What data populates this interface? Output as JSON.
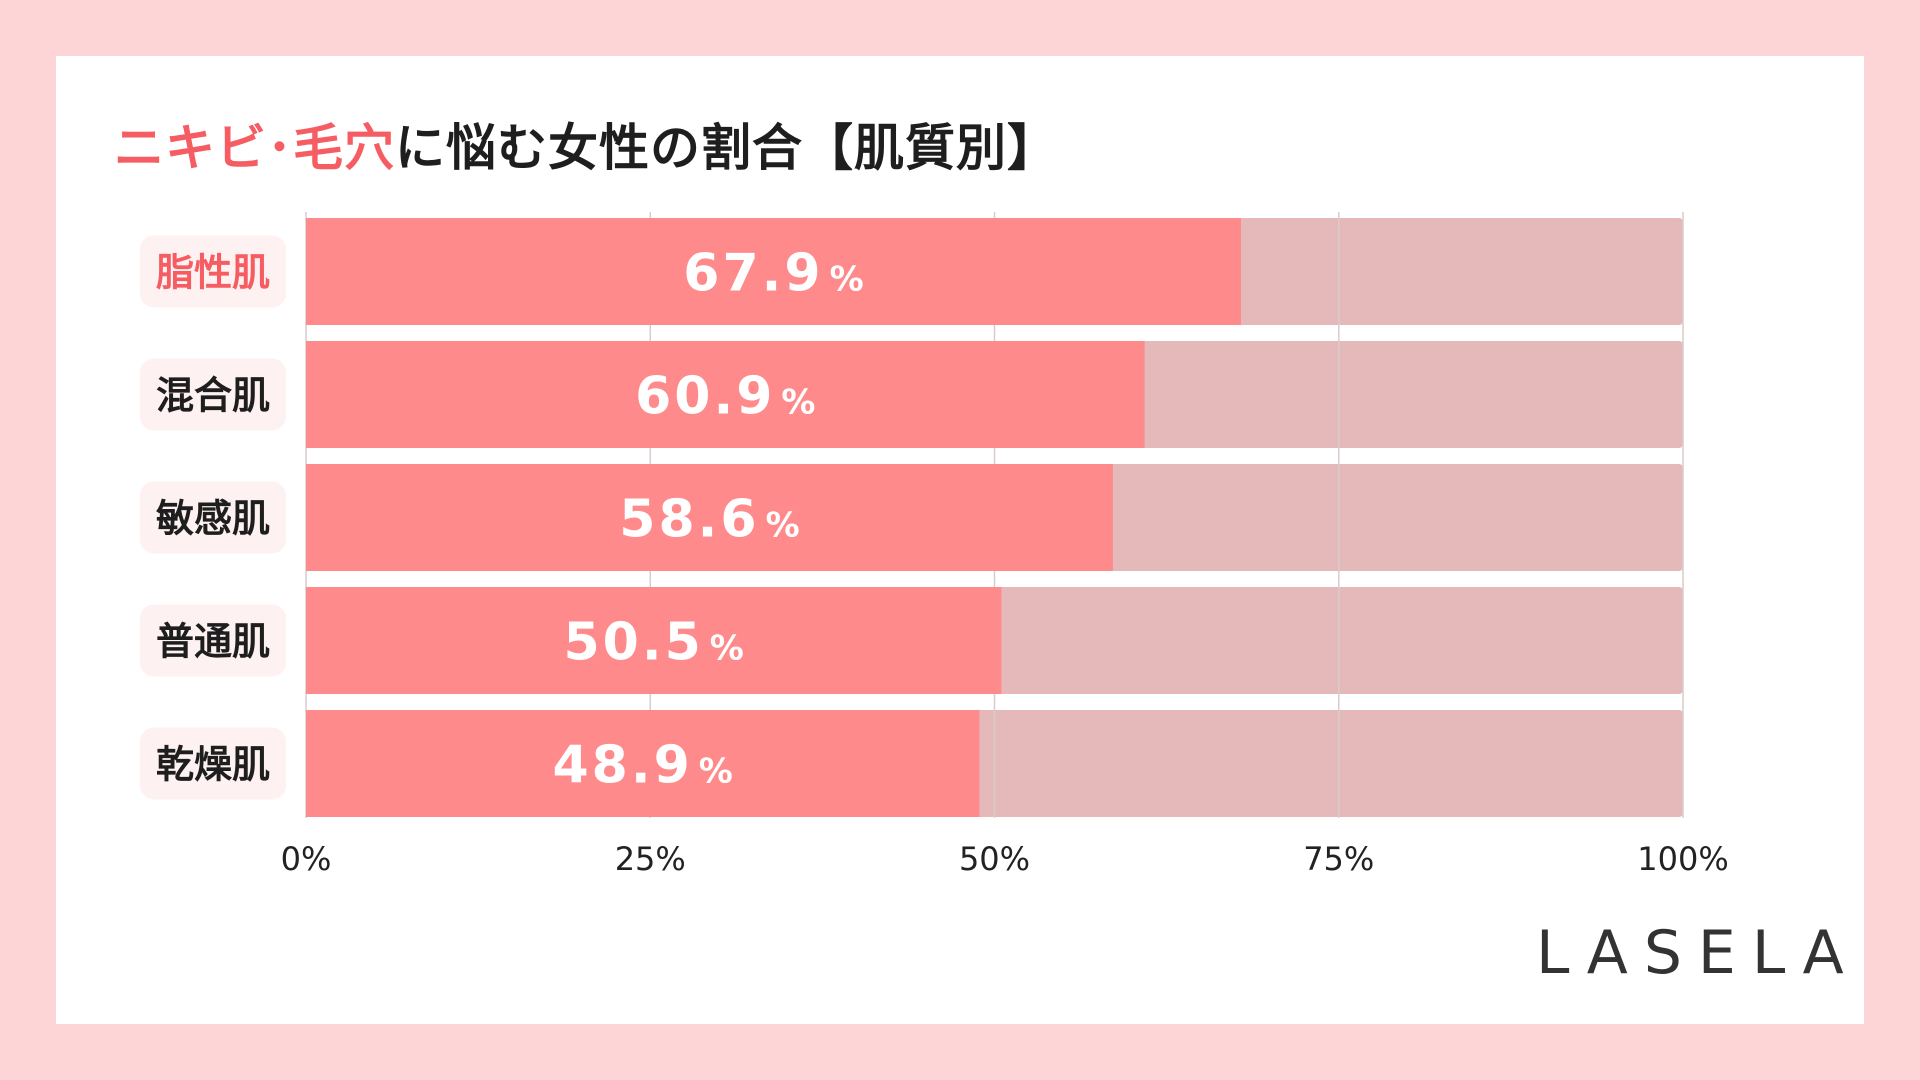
{
  "title": {
    "accent": "ニキビ･毛穴",
    "rest": "に悩む女性の割合【肌質別】"
  },
  "brand": "LASELA",
  "colors": {
    "page_background": "#fdd5d6",
    "card_background": "#ffffff",
    "bar_fill": "#ff8a8b",
    "bar_remainder": "#e5b9b9",
    "label_badge": "#fdf1f1",
    "highlight_label": "#f65d63",
    "label_text": "#1e1e1e",
    "value_text": "#ffffff"
  },
  "chart_data": {
    "type": "bar",
    "orientation": "horizontal",
    "stacked_to_100": true,
    "categories": [
      "脂性肌",
      "混合肌",
      "敏感肌",
      "普通肌",
      "乾燥肌"
    ],
    "values": [
      67.9,
      60.9,
      58.6,
      50.5,
      48.9
    ],
    "value_labels": [
      "67.9",
      "60.9",
      "58.6",
      "50.5",
      "48.9"
    ],
    "value_unit": "%",
    "highlighted_category": "脂性肌",
    "xlim": [
      0,
      100
    ],
    "xticks": [
      0,
      25,
      50,
      75,
      100
    ],
    "xtick_labels": [
      "0%",
      "25%",
      "50%",
      "75%",
      "100%"
    ],
    "grid": true,
    "xlabel": "",
    "ylabel": ""
  }
}
